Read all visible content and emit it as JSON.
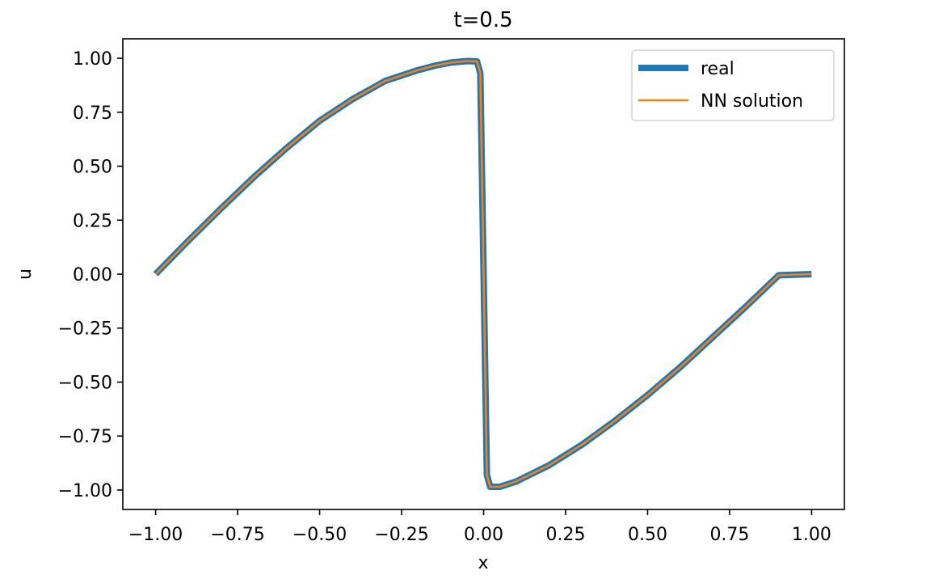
{
  "chart_data": {
    "type": "line",
    "title": "t=0.5",
    "xlabel": "x",
    "ylabel": "u",
    "xlim": [
      -1.1,
      1.1
    ],
    "ylim": [
      -1.09,
      1.09
    ],
    "xticks": [
      -1.0,
      -0.75,
      -0.5,
      -0.25,
      0.0,
      0.25,
      0.5,
      0.75,
      1.0
    ],
    "xtick_labels": [
      "−1.00",
      "−0.75",
      "−0.50",
      "−0.25",
      "0.00",
      "0.25",
      "0.50",
      "0.75",
      "1.00"
    ],
    "yticks": [
      1.0,
      0.75,
      0.5,
      0.25,
      0.0,
      -0.25,
      -0.5,
      -0.75,
      -1.0
    ],
    "ytick_labels": [
      "1.00",
      "0.75",
      "0.50",
      "0.25",
      "0.00",
      "−0.25",
      "−0.50",
      "−0.75",
      "−1.00"
    ],
    "grid": false,
    "legend_position": "upper right",
    "series": [
      {
        "name": "real",
        "color": "#1f77b4",
        "x": [
          -1.0,
          -0.9,
          -0.8,
          -0.7,
          -0.6,
          -0.5,
          -0.4,
          -0.3,
          -0.2,
          -0.15,
          -0.1,
          -0.05,
          -0.02,
          -0.01,
          0.0,
          0.01,
          0.02,
          0.05,
          0.1,
          0.2,
          0.3,
          0.4,
          0.5,
          0.6,
          0.7,
          0.8,
          0.9,
          1.0
        ],
        "y": [
          0.0,
          0.155,
          0.305,
          0.45,
          0.585,
          0.71,
          0.81,
          0.895,
          0.945,
          0.965,
          0.98,
          0.987,
          0.985,
          0.93,
          0.0,
          -0.93,
          -0.985,
          -0.985,
          -0.96,
          -0.885,
          -0.79,
          -0.68,
          -0.56,
          -0.43,
          -0.29,
          -0.15,
          -0.005,
          0.0
        ]
      },
      {
        "name": "NN solution",
        "color": "#ff7f0e",
        "x": [
          -1.0,
          -0.9,
          -0.8,
          -0.7,
          -0.6,
          -0.5,
          -0.4,
          -0.3,
          -0.2,
          -0.15,
          -0.1,
          -0.05,
          -0.02,
          -0.01,
          0.0,
          0.01,
          0.02,
          0.05,
          0.1,
          0.2,
          0.3,
          0.4,
          0.5,
          0.6,
          0.7,
          0.8,
          0.9,
          1.0
        ],
        "y": [
          0.0,
          0.155,
          0.305,
          0.45,
          0.585,
          0.71,
          0.81,
          0.895,
          0.945,
          0.965,
          0.98,
          0.987,
          0.985,
          0.93,
          0.0,
          -0.93,
          -0.985,
          -0.985,
          -0.96,
          -0.885,
          -0.79,
          -0.68,
          -0.56,
          -0.43,
          -0.29,
          -0.15,
          -0.005,
          0.0
        ]
      }
    ]
  }
}
